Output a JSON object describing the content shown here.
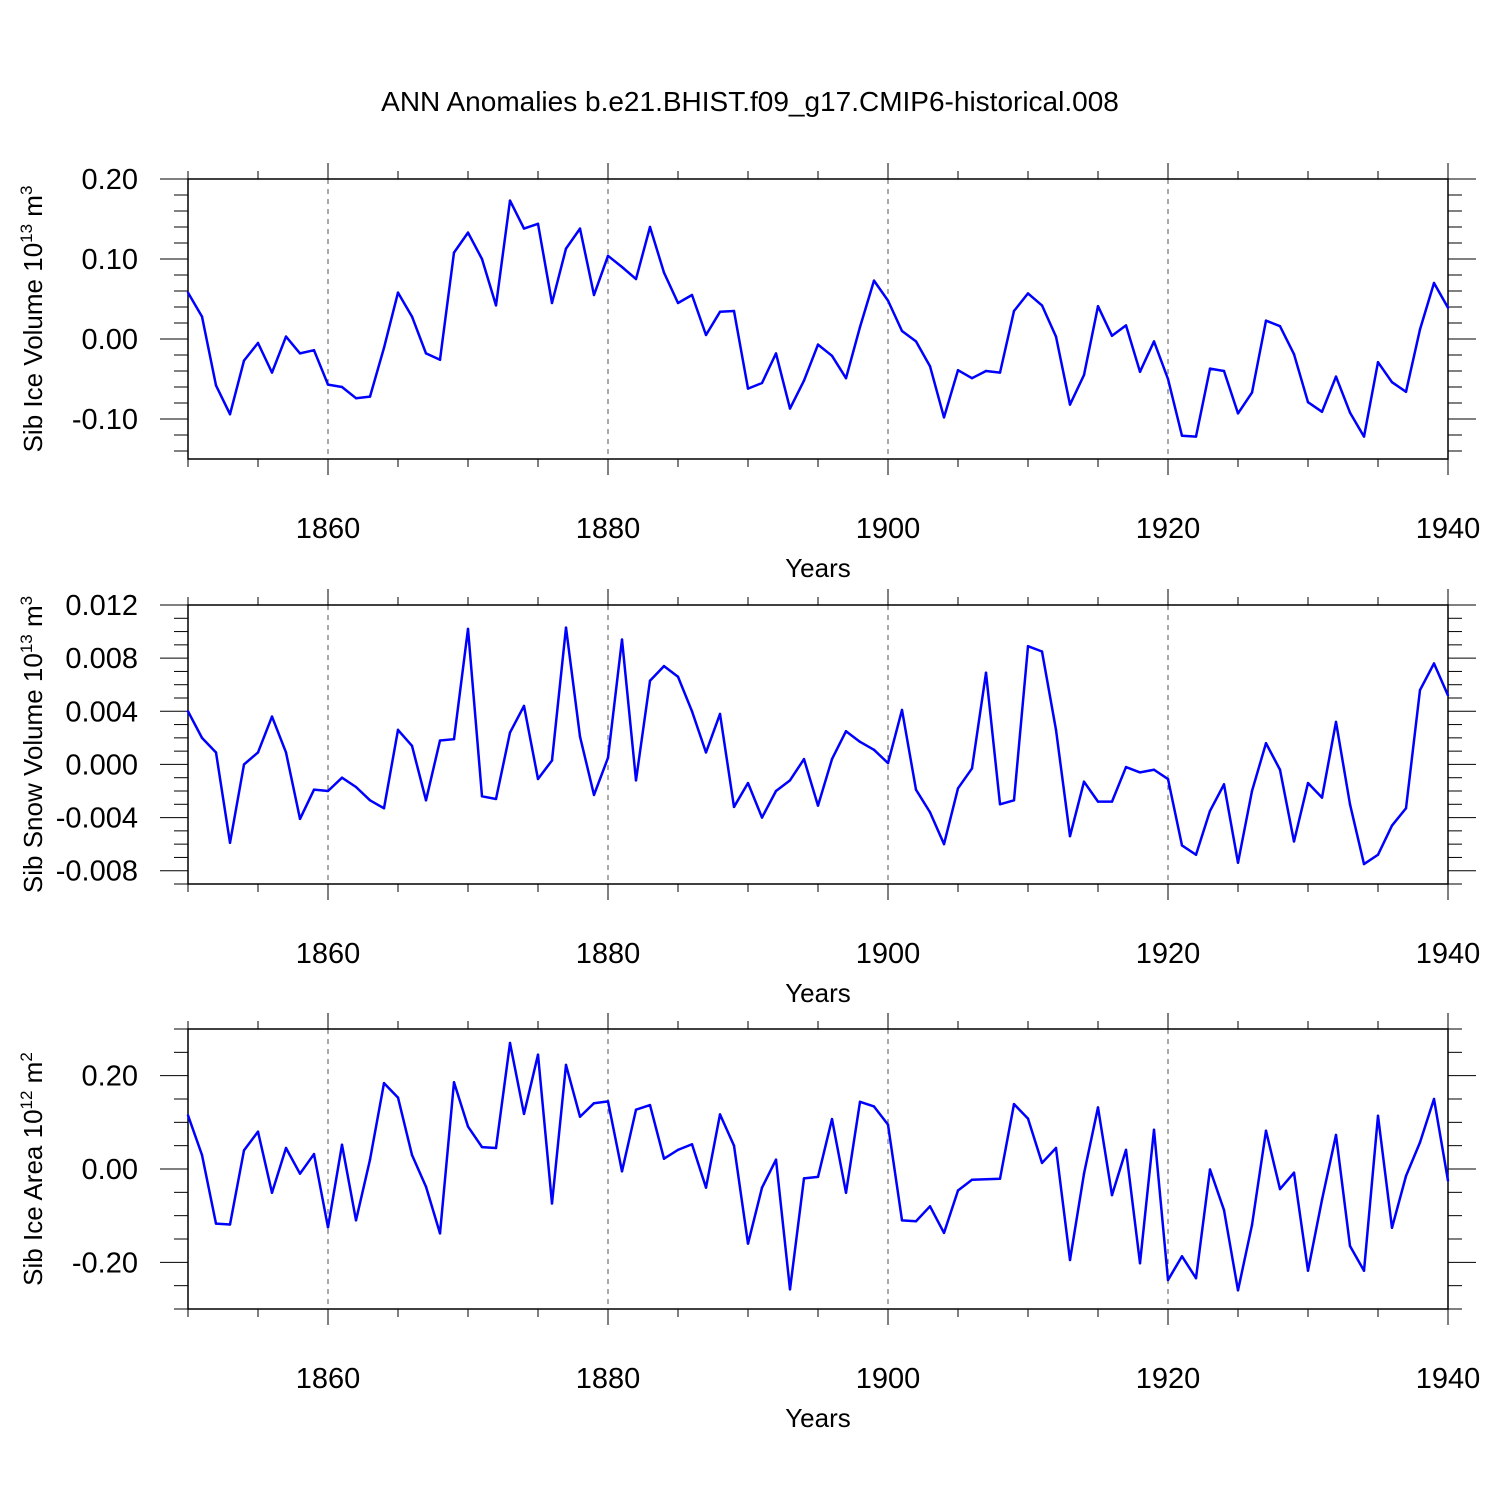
{
  "title": "ANN Anomalies b.e21.BHIST.f09_g17.CMIP6-historical.008",
  "colors": {
    "line": "#0000ff",
    "axis": "#000000",
    "grid": "#555555"
  },
  "chart_data": [
    {
      "type": "line",
      "ylabel": "Sib Ice Volume 10",
      "ylabel_sup": "13",
      "ylabel_unit": " m",
      "ylabel_unit_sup": "3",
      "xlabel": "Years",
      "xlim": [
        1850,
        1940
      ],
      "ylim": [
        -0.15,
        0.2
      ],
      "yticks": [
        -0.1,
        0.0,
        0.1,
        0.2
      ],
      "ytick_labels": [
        "-0.10",
        "0.00",
        "0.10",
        "0.20"
      ],
      "ytick_minor": 0.02,
      "xticks": [
        1860,
        1880,
        1900,
        1920,
        1940
      ],
      "xtick_labels": [
        "1860",
        "1880",
        "1900",
        "1920",
        "1940"
      ],
      "grid": "vertical dashed at major x ticks",
      "series": [
        {
          "name": "Sib Ice Volume",
          "x_start": 1850,
          "values": [
            0.058,
            0.028,
            -0.058,
            -0.094,
            -0.027,
            -0.005,
            -0.042,
            0.003,
            -0.018,
            -0.014,
            -0.057,
            -0.06,
            -0.074,
            -0.072,
            -0.011,
            0.058,
            0.028,
            -0.018,
            -0.026,
            0.108,
            0.133,
            0.1,
            0.042,
            0.173,
            0.138,
            0.144,
            0.045,
            0.113,
            0.138,
            0.055,
            0.104,
            0.09,
            0.075,
            0.14,
            0.083,
            0.045,
            0.055,
            0.005,
            0.034,
            0.035,
            -0.062,
            -0.055,
            -0.018,
            -0.087,
            -0.052,
            -0.007,
            -0.021,
            -0.049,
            0.015,
            0.073,
            0.048,
            0.01,
            -0.003,
            -0.034,
            -0.098,
            -0.039,
            -0.049,
            -0.04,
            -0.042,
            0.035,
            0.057,
            0.042,
            0.003,
            -0.082,
            -0.045,
            0.041,
            0.004,
            0.017,
            -0.041,
            -0.003,
            -0.05,
            -0.121,
            -0.122,
            -0.037,
            -0.04,
            -0.093,
            -0.067,
            0.023,
            0.016,
            -0.019,
            -0.079,
            -0.091,
            -0.047,
            -0.092,
            -0.122,
            -0.029,
            -0.054,
            -0.066,
            0.012,
            0.07,
            0.039
          ]
        }
      ]
    },
    {
      "type": "line",
      "ylabel": "Sib Snow Volume 10",
      "ylabel_sup": "13",
      "ylabel_unit": " m",
      "ylabel_unit_sup": "3",
      "xlabel": "Years",
      "xlim": [
        1850,
        1940
      ],
      "ylim": [
        -0.009,
        0.012
      ],
      "yticks": [
        -0.008,
        -0.004,
        0.0,
        0.004,
        0.008,
        0.012
      ],
      "ytick_labels": [
        "-0.008",
        "-0.004",
        "0.000",
        "0.004",
        "0.008",
        "0.012"
      ],
      "ytick_minor": 0.001,
      "xticks": [
        1860,
        1880,
        1900,
        1920,
        1940
      ],
      "xtick_labels": [
        "1860",
        "1880",
        "1900",
        "1920",
        "1940"
      ],
      "grid": "vertical dashed at major x ticks",
      "series": [
        {
          "name": "Sib Snow Volume",
          "x_start": 1850,
          "values": [
            0.004,
            0.002,
            0.0009,
            -0.0059,
            0.0,
            0.0009,
            0.0036,
            0.0009,
            -0.0041,
            -0.0019,
            -0.002,
            -0.001,
            -0.0017,
            -0.0027,
            -0.0033,
            0.0026,
            0.0014,
            -0.0027,
            0.0018,
            0.0019,
            0.0102,
            -0.0024,
            -0.0026,
            0.0024,
            0.0044,
            -0.0011,
            0.0003,
            0.0103,
            0.0021,
            -0.0023,
            0.0005,
            0.0094,
            -0.0012,
            0.0063,
            0.0074,
            0.0066,
            0.004,
            0.0009,
            0.0038,
            -0.0032,
            -0.0014,
            -0.004,
            -0.002,
            -0.0012,
            0.0004,
            -0.0031,
            0.0004,
            0.0025,
            0.0017,
            0.0011,
            0.0001,
            0.0041,
            -0.0019,
            -0.0036,
            -0.006,
            -0.0018,
            -0.0003,
            0.0069,
            -0.003,
            -0.0027,
            0.0089,
            0.0085,
            0.0026,
            -0.0054,
            -0.0013,
            -0.0028,
            -0.0028,
            -0.0002,
            -0.0006,
            -0.0004,
            -0.0011,
            -0.0061,
            -0.0068,
            -0.0035,
            -0.0015,
            -0.0074,
            -0.002,
            0.0016,
            -0.0004,
            -0.0058,
            -0.0014,
            -0.0025,
            0.0032,
            -0.003,
            -0.0075,
            -0.0068,
            -0.0046,
            -0.0033,
            0.0056,
            0.0076,
            0.0052
          ]
        }
      ]
    },
    {
      "type": "line",
      "ylabel": "Sib Ice Area 10",
      "ylabel_sup": "12",
      "ylabel_unit": " m",
      "ylabel_unit_sup": "2",
      "xlabel": "Years",
      "xlim": [
        1850,
        1940
      ],
      "ylim": [
        -0.3,
        0.3
      ],
      "yticks": [
        -0.2,
        0.0,
        0.2
      ],
      "ytick_labels": [
        "-0.20",
        "0.00",
        "0.20"
      ],
      "ytick_minor": 0.05,
      "xticks": [
        1860,
        1880,
        1900,
        1920,
        1940
      ],
      "xtick_labels": [
        "1860",
        "1880",
        "1900",
        "1920",
        "1940"
      ],
      "grid": "vertical dashed at major x ticks",
      "series": [
        {
          "name": "Sib Ice Area",
          "x_start": 1850,
          "values": [
            0.115,
            0.03,
            -0.117,
            -0.119,
            0.04,
            0.08,
            -0.051,
            0.045,
            -0.01,
            0.032,
            -0.125,
            0.052,
            -0.11,
            0.02,
            0.184,
            0.153,
            0.03,
            -0.038,
            -0.138,
            0.186,
            0.091,
            0.047,
            0.045,
            0.27,
            0.118,
            0.245,
            -0.074,
            0.223,
            0.112,
            0.141,
            0.145,
            -0.005,
            0.127,
            0.137,
            0.022,
            0.041,
            0.053,
            -0.04,
            0.117,
            0.05,
            -0.16,
            -0.04,
            0.02,
            -0.258,
            -0.02,
            -0.017,
            0.107,
            -0.051,
            0.144,
            0.134,
            0.095,
            -0.11,
            -0.112,
            -0.08,
            -0.137,
            -0.046,
            -0.023,
            -0.022,
            -0.021,
            0.139,
            0.108,
            0.013,
            0.045,
            -0.195,
            -0.01,
            0.132,
            -0.056,
            0.041,
            -0.202,
            0.084,
            -0.238,
            -0.187,
            -0.234,
            -0.001,
            -0.088,
            -0.26,
            -0.12,
            0.082,
            -0.043,
            -0.008,
            -0.218,
            -0.066,
            0.073,
            -0.165,
            -0.218,
            0.114,
            -0.126,
            -0.015,
            0.057,
            0.15,
            -0.025
          ]
        }
      ]
    }
  ]
}
